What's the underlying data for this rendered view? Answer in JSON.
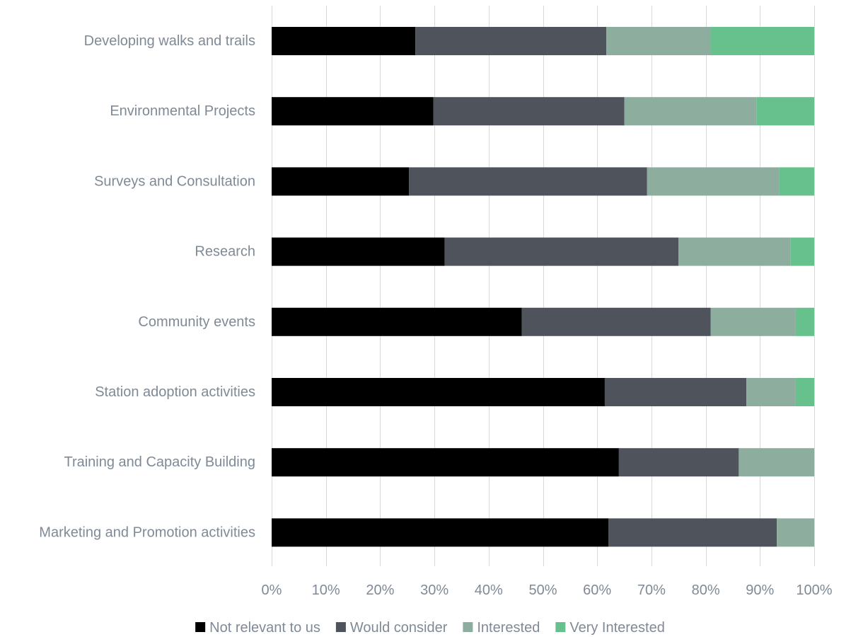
{
  "chart_data": {
    "type": "bar",
    "orientation": "horizontal",
    "stacked": "percent",
    "categories": [
      "Developing walks and trails",
      "Environmental Projects",
      "Surveys and Consultation",
      "Research",
      "Community events",
      "Station adoption activities",
      "Training and Capacity Building",
      "Marketing and Promotion activities"
    ],
    "series": [
      {
        "name": "Not relevant to us",
        "color": "#000000",
        "values": [
          26.5,
          29.8,
          25.3,
          31.9,
          46.1,
          61.4,
          64.0,
          62.1
        ]
      },
      {
        "name": "Would consider",
        "color": "#4f545c",
        "values": [
          35.2,
          35.2,
          43.9,
          43.1,
          34.8,
          26.1,
          22.1,
          31.0
        ]
      },
      {
        "name": "Interested",
        "color": "#8dae9f",
        "values": [
          19.2,
          24.4,
          24.3,
          20.6,
          15.7,
          9.1,
          13.9,
          6.9
        ]
      },
      {
        "name": "Very Interested",
        "color": "#66c18c",
        "values": [
          19.1,
          10.6,
          6.5,
          4.4,
          3.4,
          3.4,
          0,
          0
        ]
      }
    ],
    "x_ticks": [
      "0%",
      "10%",
      "20%",
      "30%",
      "40%",
      "50%",
      "60%",
      "70%",
      "80%",
      "90%",
      "100%"
    ],
    "xlim": [
      0,
      100
    ],
    "grid": true,
    "legend_position": "bottom",
    "title": "",
    "xlabel": "",
    "ylabel": ""
  }
}
